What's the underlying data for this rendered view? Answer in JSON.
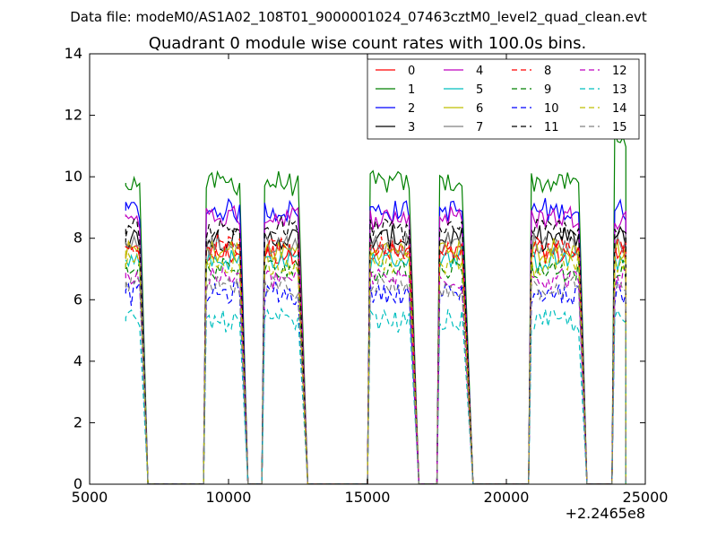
{
  "header": {
    "data_file": "Data file: modeM0/AS1A02_108T01_9000001024_07463cztM0_level2_quad_clean.evt"
  },
  "chart_data": {
    "type": "line",
    "title": "Quadrant 0 module wise count rates with 100.0s bins.",
    "xlabel": "",
    "ylabel": "",
    "xlim": [
      5000,
      25000
    ],
    "ylim": [
      0,
      14
    ],
    "x_offset_label": "+2.2465e8",
    "x_ticks": [
      5000,
      10000,
      15000,
      20000,
      25000
    ],
    "x_tick_labels": [
      "5000",
      "10000",
      "15000",
      "20000",
      "25000"
    ],
    "y_ticks": [
      0,
      2,
      4,
      6,
      8,
      10,
      12,
      14
    ],
    "y_tick_labels": [
      "0",
      "2",
      "4",
      "6",
      "8",
      "10",
      "12",
      "14"
    ],
    "grid": false,
    "legend_position": "top-right",
    "legend_columns": 4,
    "segments": [
      {
        "start": 6300,
        "end": 6800,
        "drop_x": 7100
      },
      {
        "start": 9200,
        "end": 10400,
        "drop_x": 10700
      },
      {
        "start": 11300,
        "end": 12500,
        "drop_x": 12850
      },
      {
        "start": 15100,
        "end": 16500,
        "drop_x": 16850
      },
      {
        "start": 17600,
        "end": 18400,
        "drop_x": 18800
      },
      {
        "start": 20900,
        "end": 22600,
        "drop_x": 22900
      },
      {
        "start": 23900,
        "end": 24300,
        "drop_x": 24300
      }
    ],
    "series": [
      {
        "name": "0",
        "color": "#ff0000",
        "dash": false,
        "level": 7.5
      },
      {
        "name": "1",
        "color": "#008000",
        "dash": false,
        "level": 9.8
      },
      {
        "name": "2",
        "color": "#0000ff",
        "dash": false,
        "level": 8.9
      },
      {
        "name": "3",
        "color": "#000000",
        "dash": false,
        "level": 8.0
      },
      {
        "name": "4",
        "color": "#bf00bf",
        "dash": false,
        "level": 8.7
      },
      {
        "name": "5",
        "color": "#00bfbf",
        "dash": false,
        "level": 7.3
      },
      {
        "name": "6",
        "color": "#bfbf00",
        "dash": false,
        "level": 7.6
      },
      {
        "name": "7",
        "color": "#808080",
        "dash": false,
        "level": 7.8
      },
      {
        "name": "8",
        "color": "#ff0000",
        "dash": true,
        "level": 7.7
      },
      {
        "name": "9",
        "color": "#008000",
        "dash": true,
        "level": 7.0
      },
      {
        "name": "10",
        "color": "#0000ff",
        "dash": true,
        "level": 6.2
      },
      {
        "name": "11",
        "color": "#000000",
        "dash": true,
        "level": 8.3
      },
      {
        "name": "12",
        "color": "#bf00bf",
        "dash": true,
        "level": 6.7
      },
      {
        "name": "13",
        "color": "#00bfbf",
        "dash": true,
        "level": 5.3
      },
      {
        "name": "14",
        "color": "#bfbf00",
        "dash": true,
        "level": 7.2
      },
      {
        "name": "15",
        "color": "#808080",
        "dash": true,
        "level": 6.4
      }
    ]
  }
}
